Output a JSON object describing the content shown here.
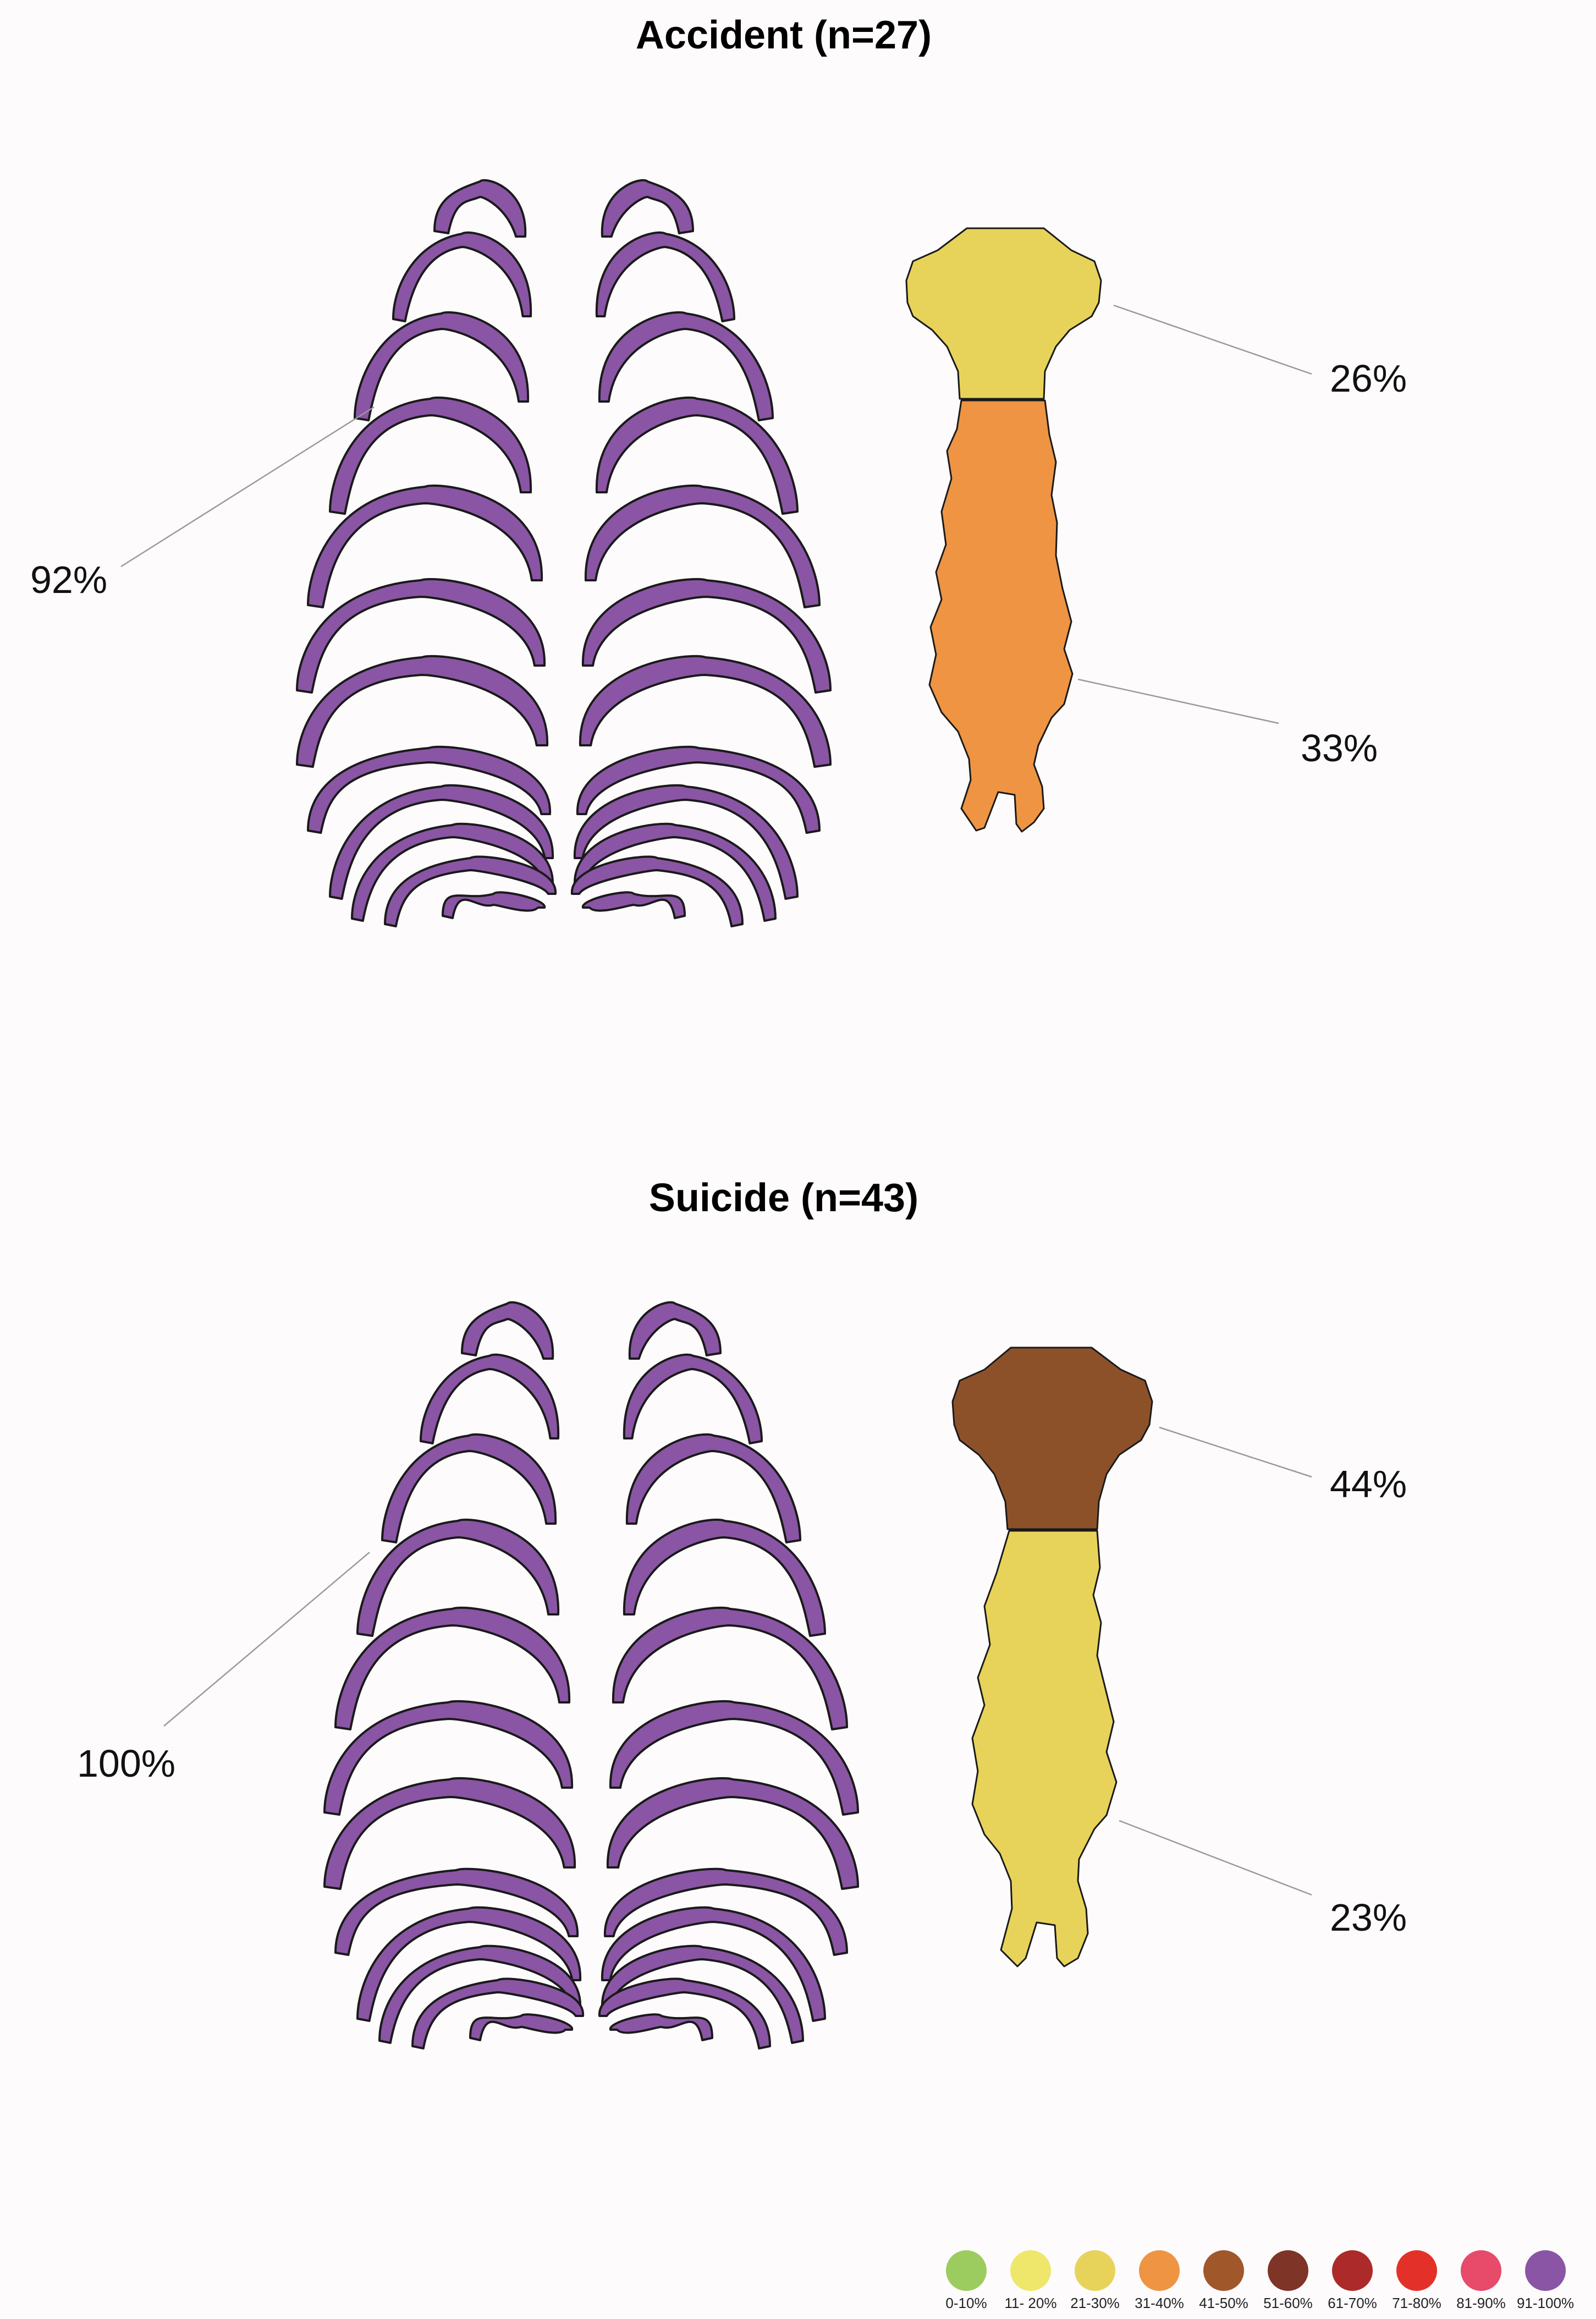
{
  "panels": [
    {
      "title": "Accident (n=27)",
      "ribs_pct": "92%",
      "ribs_color": "#8a55a4",
      "manubrium_pct": "26%",
      "manubrium_color": "#e8d35a",
      "body_pct": "33%",
      "body_color": "#ee9443"
    },
    {
      "title": "Suicide (n=43)",
      "ribs_pct": "100%",
      "ribs_color": "#8a55a4",
      "manubrium_pct": "44%",
      "manubrium_color": "#8d512a",
      "body_pct": "23%",
      "body_color": "#e8d35a"
    }
  ],
  "legend": [
    {
      "label": "0-10%",
      "color": "#9ccc5f"
    },
    {
      "label": "11- 20%",
      "color": "#eee76b"
    },
    {
      "label": "21-30%",
      "color": "#e8d35a"
    },
    {
      "label": "31-40%",
      "color": "#ee9443"
    },
    {
      "label": "41-50%",
      "color": "#a0572a"
    },
    {
      "label": "51-60%",
      "color": "#7e3427"
    },
    {
      "label": "61-70%",
      "color": "#ac2a2a"
    },
    {
      "label": "71-80%",
      "color": "#e3312a"
    },
    {
      "label": "81-90%",
      "color": "#e84a6a"
    },
    {
      "label": "91-100%",
      "color": "#8a55a4"
    }
  ]
}
